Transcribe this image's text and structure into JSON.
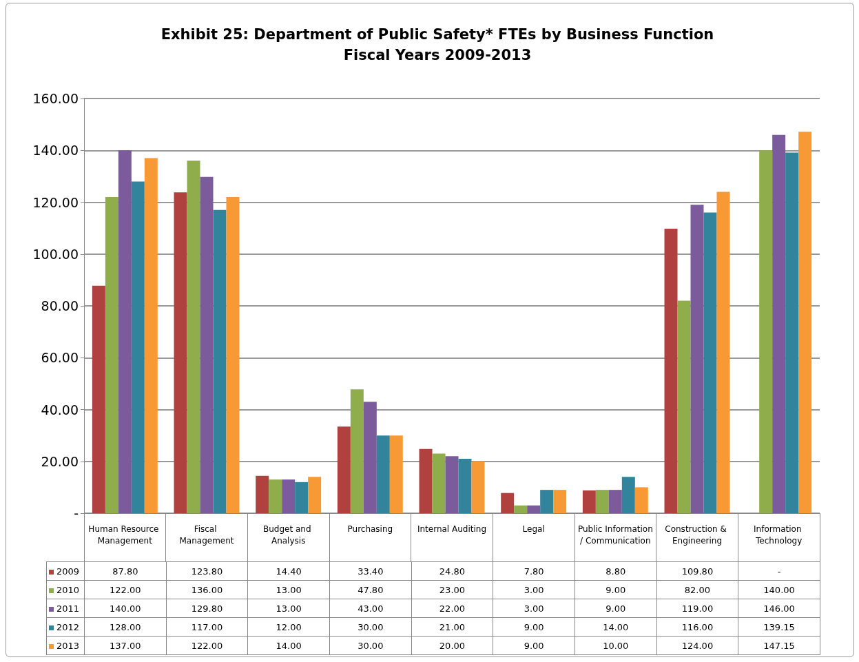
{
  "chart_data": {
    "type": "bar",
    "title": "Exhibit 25: Department of Public Safety* FTEs by Business Function\nFiscal Years 2009-2013",
    "categories": [
      "Human Resource Management",
      "Fiscal Management",
      "Budget and Analysis",
      "Purchasing",
      "Internal Auditing",
      "Legal",
      "Public Information/ Communication",
      "Construction & Engineering",
      "Information Technology"
    ],
    "series": [
      {
        "name": "2009",
        "color": "#b0413e",
        "values": [
          87.8,
          123.8,
          14.4,
          33.4,
          24.8,
          7.8,
          8.8,
          109.8,
          0
        ],
        "value_labels": [
          "87.80",
          "123.80",
          "14.40",
          "33.40",
          "24.80",
          "7.80",
          "8.80",
          "109.80",
          "-"
        ]
      },
      {
        "name": "2010",
        "color": "#8fad4a",
        "values": [
          122,
          136,
          13,
          47.8,
          23,
          3,
          9,
          82,
          140
        ],
        "value_labels": [
          "122.00",
          "136.00",
          "13.00",
          "47.80",
          "23.00",
          "3.00",
          "9.00",
          "82.00",
          "140.00"
        ]
      },
      {
        "name": "2011",
        "color": "#7b5b9b",
        "values": [
          140,
          129.8,
          13,
          43,
          22,
          3,
          9,
          119,
          146
        ],
        "value_labels": [
          "140.00",
          "129.80",
          "13.00",
          "43.00",
          "22.00",
          "3.00",
          "9.00",
          "119.00",
          "146.00"
        ]
      },
      {
        "name": "2012",
        "color": "#31849b",
        "values": [
          128,
          117,
          12,
          30,
          21,
          9,
          14,
          116,
          139.15
        ],
        "value_labels": [
          "128.00",
          "117.00",
          "12.00",
          "30.00",
          "21.00",
          "9.00",
          "14.00",
          "116.00",
          "139.15"
        ]
      },
      {
        "name": "2013",
        "color": "#f79a36",
        "values": [
          137,
          122,
          14,
          30,
          20,
          9,
          10,
          124,
          147.15
        ],
        "value_labels": [
          "137.00",
          "122.00",
          "14.00",
          "30.00",
          "20.00",
          "9.00",
          "10.00",
          "124.00",
          "147.15"
        ]
      }
    ],
    "ylim": [
      0,
      160
    ],
    "yticks": [
      {
        "value": 0,
        "label": "-"
      },
      {
        "value": 20,
        "label": "20.00"
      },
      {
        "value": 40,
        "label": "40.00"
      },
      {
        "value": 60,
        "label": "60.00"
      },
      {
        "value": 80,
        "label": "80.00"
      },
      {
        "value": 100,
        "label": "100.00"
      },
      {
        "value": 120,
        "label": "120.00"
      },
      {
        "value": 140,
        "label": "140.00"
      },
      {
        "value": 160,
        "label": "160.00"
      }
    ],
    "grid": "y",
    "legend": "bottom left"
  }
}
